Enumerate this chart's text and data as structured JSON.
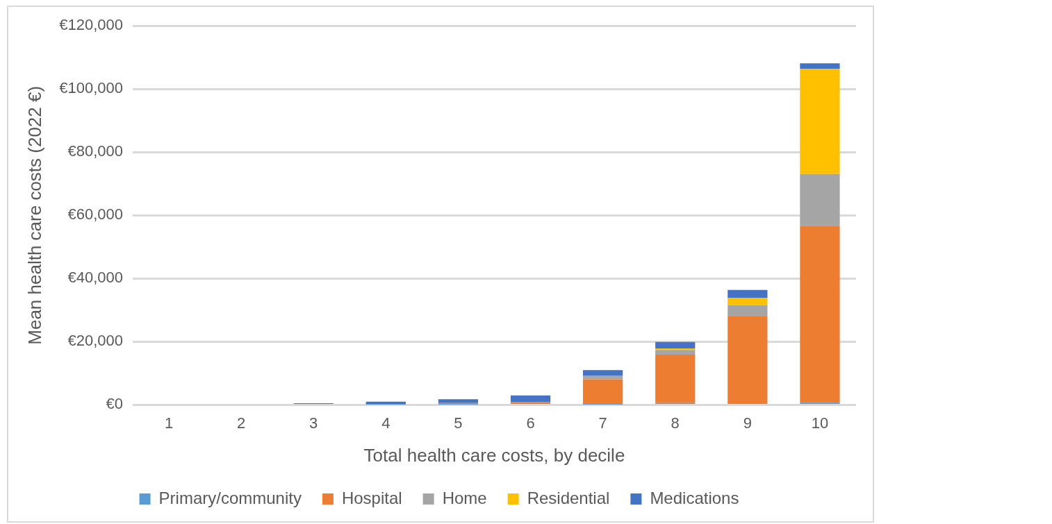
{
  "chart_data": {
    "type": "bar",
    "stacked": true,
    "xlabel": "Total health care costs, by decile",
    "ylabel": "Mean health care costs (2022 €)",
    "categories": [
      "1",
      "2",
      "3",
      "4",
      "5",
      "6",
      "7",
      "8",
      "9",
      "10"
    ],
    "series": [
      {
        "name": "Primary/community",
        "color": "#5b9bd5",
        "values": [
          0,
          0,
          0,
          100,
          100,
          0,
          100,
          600,
          null,
          700
        ]
      },
      {
        "name": "Hospital",
        "color": "#ed7d31",
        "values": [
          0,
          0,
          0,
          0,
          500,
          900,
          8000,
          15300,
          28000,
          56000
        ]
      },
      {
        "name": "Home",
        "color": "#a5a5a5",
        "values": [
          0,
          0,
          0,
          0,
          0,
          0,
          1200,
          1500,
          3600,
          16400
        ]
      },
      {
        "name": "Residential",
        "color": "#ffc000",
        "values": [
          0,
          0,
          0,
          0,
          0,
          0,
          0,
          500,
          2200,
          33300
        ]
      },
      {
        "name": "Medications",
        "color": "#4472c4",
        "values": [
          0,
          0,
          500,
          900,
          1200,
          2100,
          1700,
          2000,
          2600,
          1700
        ]
      }
    ],
    "ylim": [
      0,
      120000
    ],
    "yticks": [
      {
        "value": 0,
        "label": "€0"
      },
      {
        "value": 20000,
        "label": "€20,000"
      },
      {
        "value": 40000,
        "label": "€40,000"
      },
      {
        "value": 60000,
        "label": "€60,000"
      },
      {
        "value": 80000,
        "label": "€80,000"
      },
      {
        "value": 100000,
        "label": "€100,000"
      },
      {
        "value": 120000,
        "label": "€120,000"
      }
    ],
    "grid": "y",
    "legend": "bottom"
  }
}
